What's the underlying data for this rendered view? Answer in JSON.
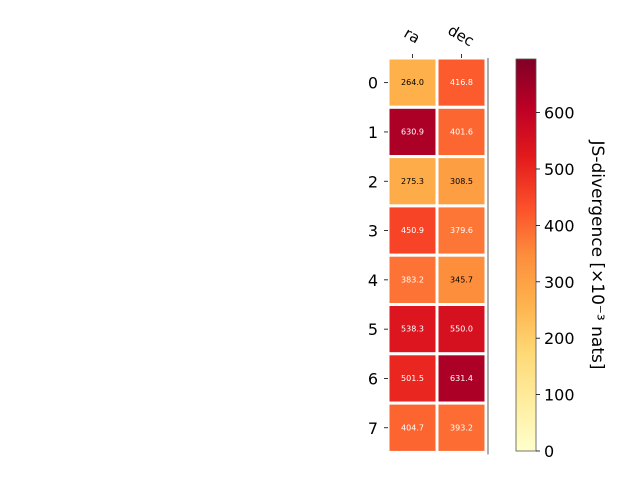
{
  "chart_data": {
    "type": "heatmap",
    "x_categories": [
      "ra",
      "dec"
    ],
    "y_categories": [
      "0",
      "1",
      "2",
      "3",
      "4",
      "5",
      "6",
      "7"
    ],
    "values": [
      [
        264.0,
        416.8
      ],
      [
        630.9,
        401.6
      ],
      [
        275.3,
        308.5
      ],
      [
        450.9,
        379.6
      ],
      [
        383.2,
        345.7
      ],
      [
        538.3,
        550.0
      ],
      [
        501.5,
        631.4
      ],
      [
        404.7,
        393.2
      ]
    ],
    "cell_labels": [
      [
        "264.0",
        "416.8"
      ],
      [
        "630.9",
        "401.6"
      ],
      [
        "275.3",
        "308.5"
      ],
      [
        "450.9",
        "379.6"
      ],
      [
        "383.2",
        "345.7"
      ],
      [
        "538.3",
        "550.0"
      ],
      [
        "501.5",
        "631.4"
      ],
      [
        "404.7",
        "393.2"
      ]
    ],
    "colorbar": {
      "label": "JS-divergence [×10⁻³ nats]",
      "range": [
        0,
        695
      ],
      "ticks": [
        0,
        100,
        200,
        300,
        400,
        500,
        600
      ],
      "tick_labels": [
        "0",
        "100",
        "200",
        "300",
        "400",
        "500",
        "600"
      ],
      "colormap": "YlOrRd"
    },
    "x_tick_position": "top",
    "grid": false
  }
}
